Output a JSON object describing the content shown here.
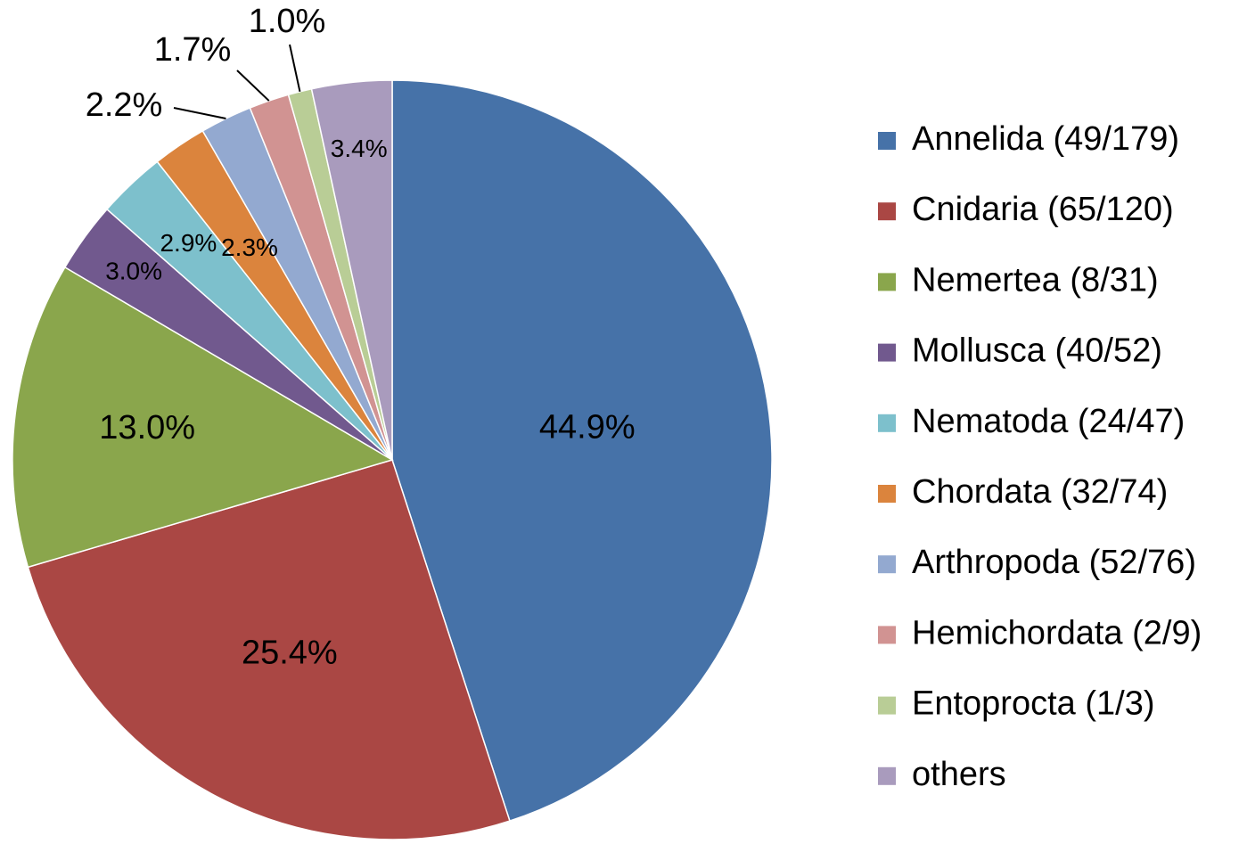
{
  "chart_data": {
    "type": "pie",
    "title": "",
    "legend_position": "right",
    "slices": [
      {
        "legend": "Annelida (49/179)",
        "value": 44.9,
        "label": "44.9%",
        "color": "#4672A8"
      },
      {
        "legend": "Cnidaria (65/120)",
        "value": 25.4,
        "label": "25.4%",
        "color": "#AA4744"
      },
      {
        "legend": "Nemertea (8/31)",
        "value": 13.0,
        "label": "13.0%",
        "color": "#8AA64C"
      },
      {
        "legend": "Mollusca (40/52)",
        "value": 3.0,
        "label": "3.0%",
        "color": "#71598E"
      },
      {
        "legend": "Nematoda (24/47)",
        "value": 2.9,
        "label": "2.9%",
        "color": "#7DC0CC"
      },
      {
        "legend": "Chordata (32/74)",
        "value": 2.3,
        "label": "2.3%",
        "color": "#DB843D"
      },
      {
        "legend": "Arthropoda (52/76)",
        "value": 2.2,
        "label": "2.2%",
        "color": "#93A9D0"
      },
      {
        "legend": "Hemichordata (2/9)",
        "value": 1.7,
        "label": "1.7%",
        "color": "#D19392"
      },
      {
        "legend": "Entoprocta (1/3)",
        "value": 1.0,
        "label": "1.0%",
        "color": "#B9CD96"
      },
      {
        "legend": "others",
        "value": 3.4,
        "label": "3.4%",
        "color": "#A99BBD"
      }
    ]
  }
}
